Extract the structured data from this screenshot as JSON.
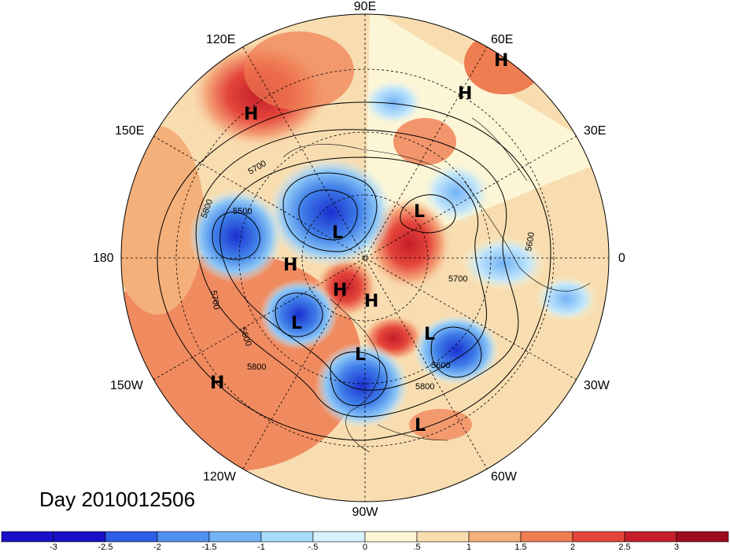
{
  "title": "Day 2010012506",
  "lon_labels": {
    "e90": "90E",
    "e120": "120E",
    "e60": "60E",
    "e150": "150E",
    "e30": "30E",
    "d180": "180",
    "d0": "0",
    "w150": "150W",
    "w30": "30W",
    "w120": "120W",
    "w60": "60W",
    "w90": "90W"
  },
  "contour_labels": [
    "5700",
    "5800",
    "5500",
    "5700",
    "5600",
    "5800",
    "5600",
    "5800",
    "5700",
    "5600"
  ],
  "pressure_centers": [
    "H",
    "H",
    "H",
    "H",
    "L",
    "L",
    "H",
    "H",
    "L",
    "L",
    "L",
    "L",
    "H",
    "H"
  ],
  "colorbar": {
    "tick_labels": [
      "-3",
      "-2.5",
      "-2",
      "-1.5",
      "-1",
      "-.5",
      "0",
      ".5",
      "1",
      "1.5",
      "2",
      "2.5",
      "3"
    ],
    "colors": [
      "#1a10c8",
      "#2f5de6",
      "#4f8ff0",
      "#73b3f6",
      "#a8dcfb",
      "#d8f2fc",
      "#fcf6d6",
      "#f8ddb0",
      "#f4b07a",
      "#ef7d52",
      "#e4453a",
      "#c41e2a",
      "#9e0a1e"
    ]
  },
  "colors": {
    "positive": "#ef7d52",
    "negative": "#2f5de6",
    "background_anomaly": "#f8ddb0"
  }
}
